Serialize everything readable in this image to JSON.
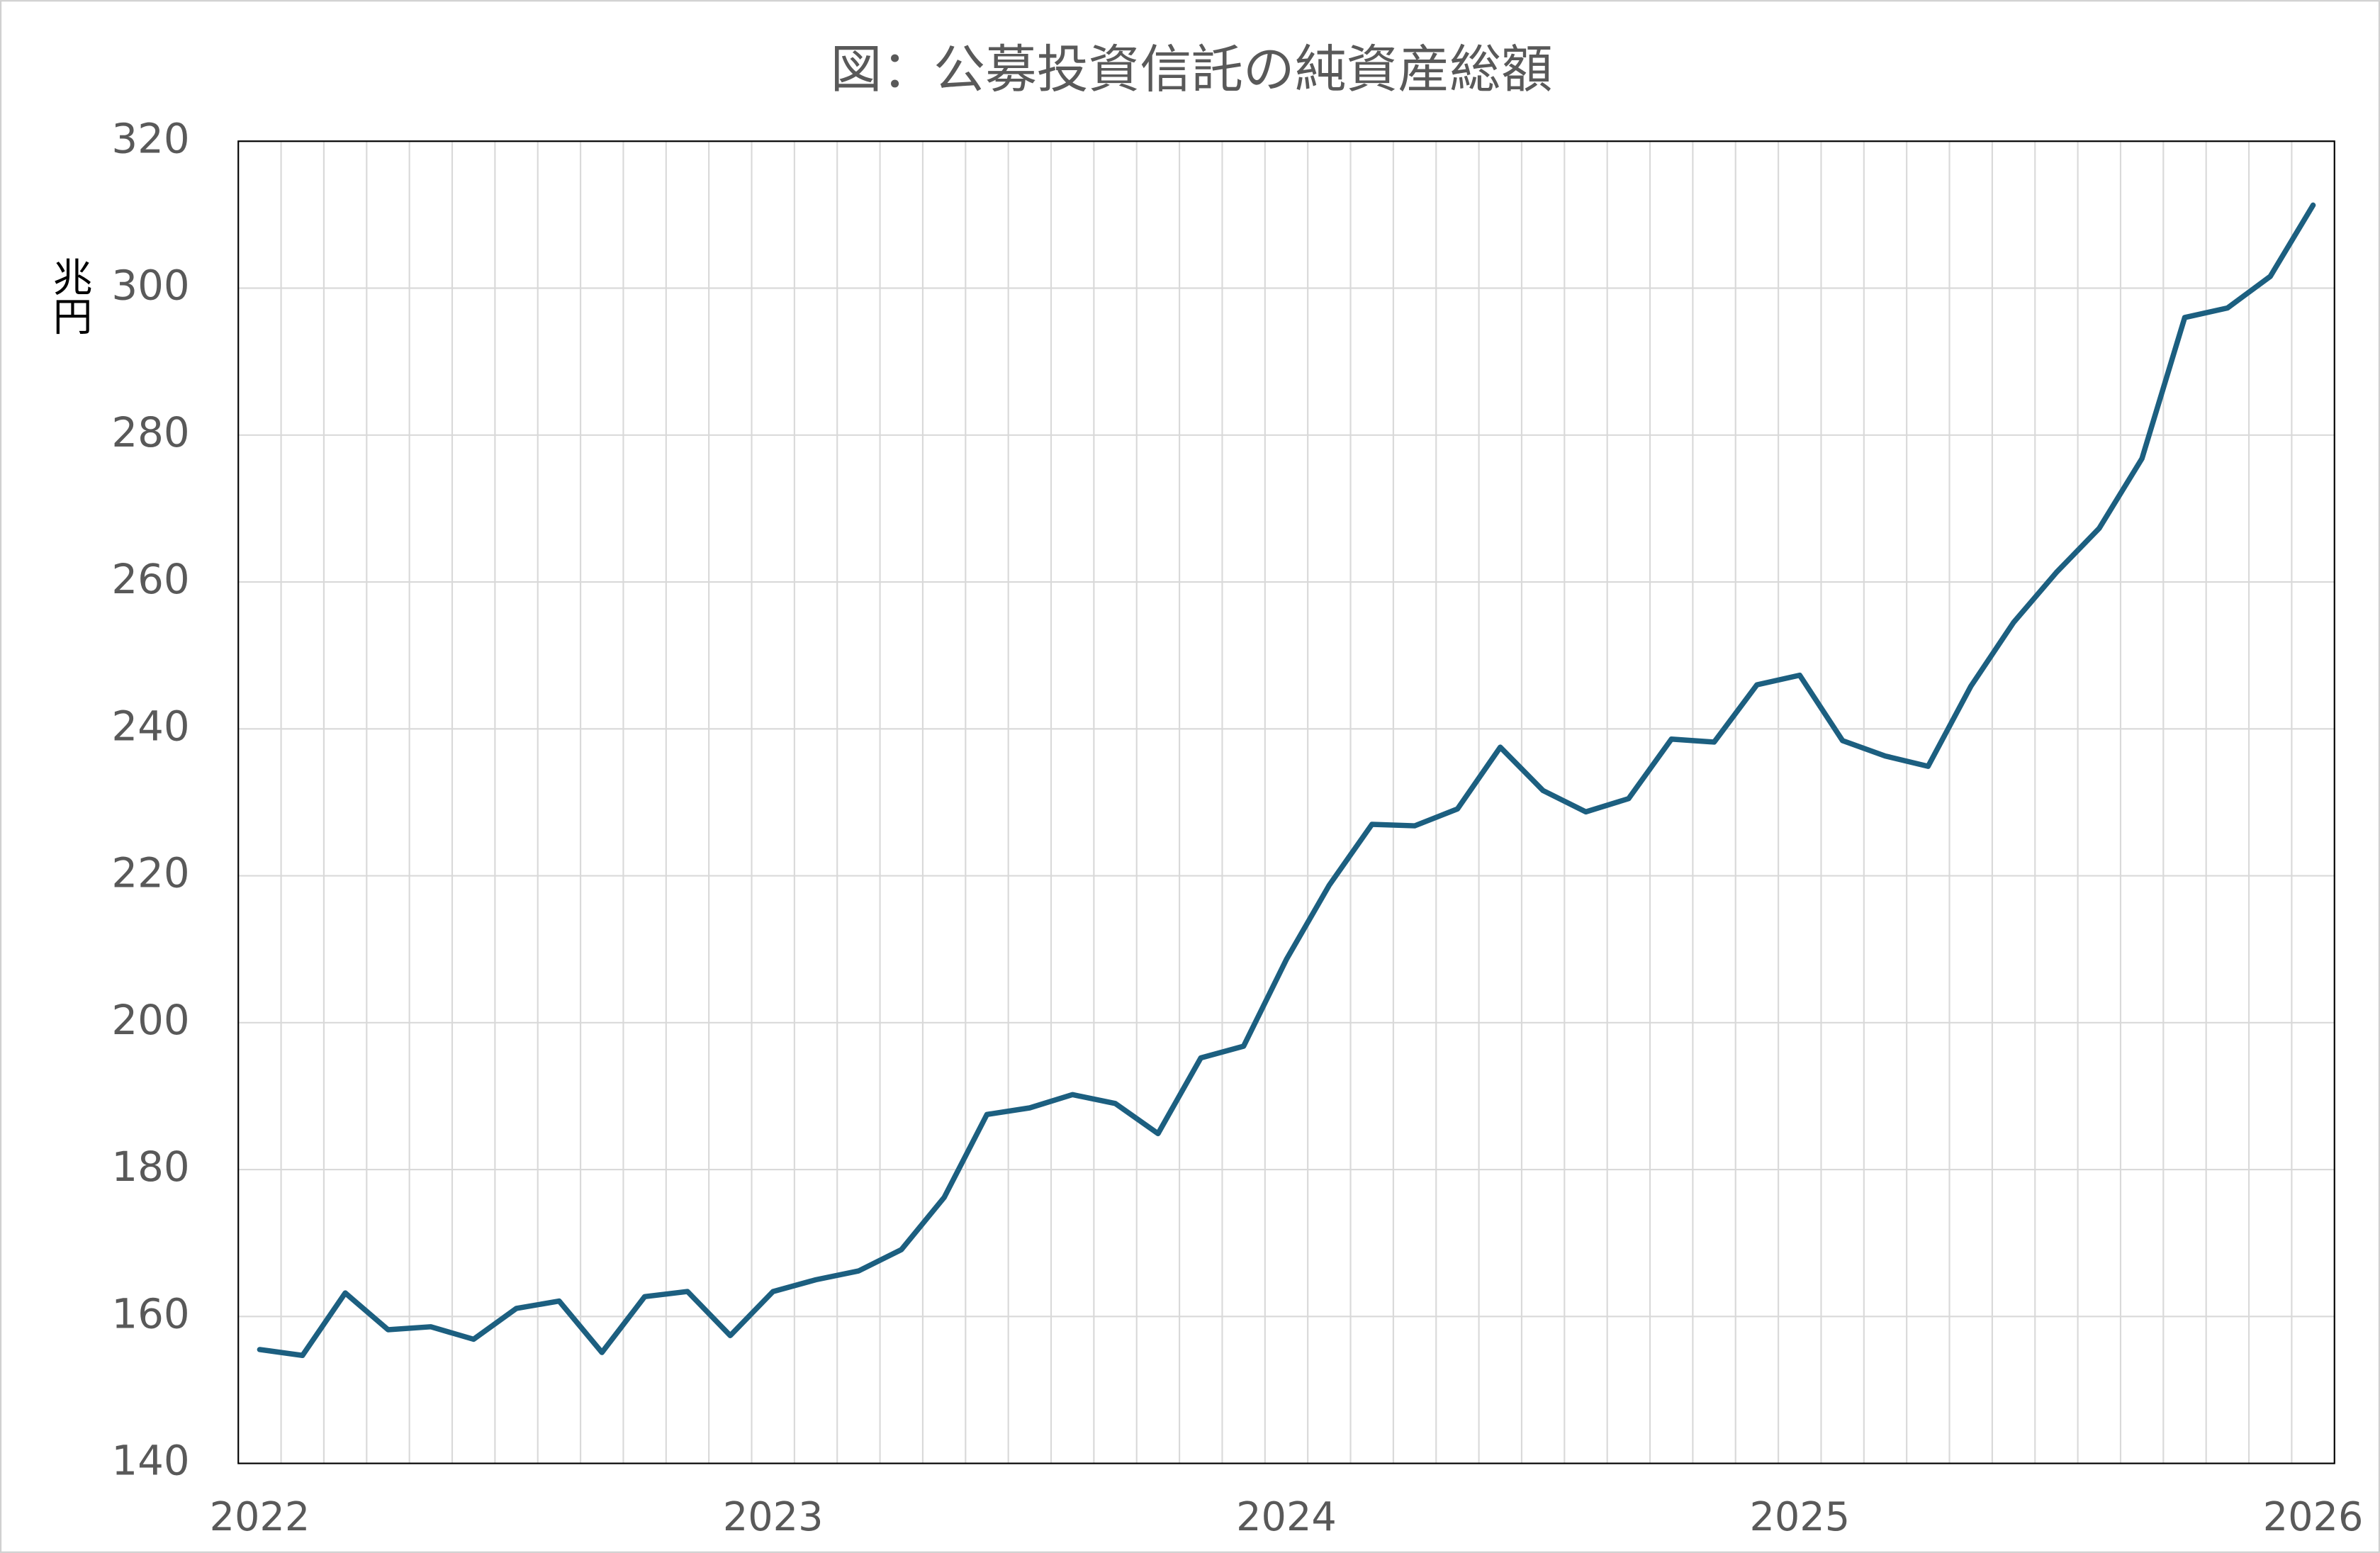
{
  "chart_data": {
    "type": "line",
    "title": "図：公募投資信託の純資産総額",
    "y_label": "兆円",
    "categories": [
      "2022",
      null,
      null,
      null,
      null,
      null,
      null,
      null,
      null,
      null,
      null,
      null,
      "2023",
      null,
      null,
      null,
      null,
      null,
      null,
      null,
      null,
      null,
      null,
      null,
      "2024",
      null,
      null,
      null,
      null,
      null,
      null,
      null,
      null,
      null,
      null,
      null,
      "2025",
      null,
      null,
      null,
      null,
      null,
      null,
      null,
      null,
      null,
      null,
      null,
      "2026"
    ],
    "series": [
      {
        "name": "純資産総額",
        "color": "#1c5f80",
        "values": [
          155.5,
          154.7,
          163.2,
          158.2,
          158.6,
          156.9,
          161.1,
          162.1,
          155.1,
          162.7,
          163.4,
          157.4,
          163.4,
          165.0,
          166.2,
          169.1,
          176.2,
          187.5,
          188.4,
          190.2,
          189.0,
          184.9,
          195.2,
          196.8,
          208.6,
          218.7,
          227.0,
          226.8,
          229.1,
          237.5,
          231.6,
          228.7,
          230.5,
          238.6,
          238.2,
          246.0,
          247.3,
          238.4,
          236.3,
          234.9,
          245.8,
          254.5,
          261.3,
          267.3,
          276.8,
          296.0,
          297.3,
          301.6,
          311.3
        ]
      }
    ],
    "ylim": [
      140,
      320
    ],
    "yticks": [
      140,
      160,
      180,
      200,
      220,
      240,
      260,
      280,
      300,
      320
    ],
    "grid": true
  }
}
